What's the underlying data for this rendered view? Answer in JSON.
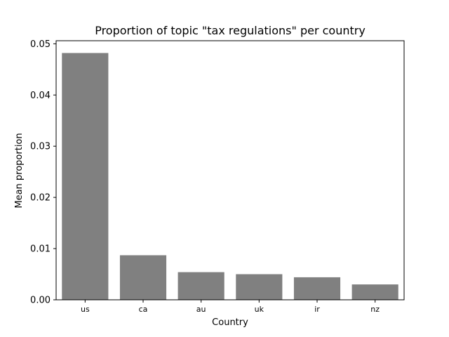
{
  "chart_data": {
    "type": "bar",
    "title": "Proportion of topic \"tax regulations\" per country",
    "xlabel": "Country",
    "ylabel": "Mean proportion",
    "categories": [
      "us",
      "ca",
      "au",
      "uk",
      "ir",
      "nz"
    ],
    "values": [
      0.0482,
      0.0087,
      0.0054,
      0.005,
      0.0044,
      0.003
    ],
    "ylim": [
      0,
      0.0506
    ],
    "yticks": [
      0.0,
      0.01,
      0.02,
      0.03,
      0.04,
      0.05
    ],
    "ytick_labels": [
      "0.00",
      "0.01",
      "0.02",
      "0.03",
      "0.04",
      "0.05"
    ],
    "bar_color": "#808080",
    "grid": false,
    "legend": "none"
  }
}
